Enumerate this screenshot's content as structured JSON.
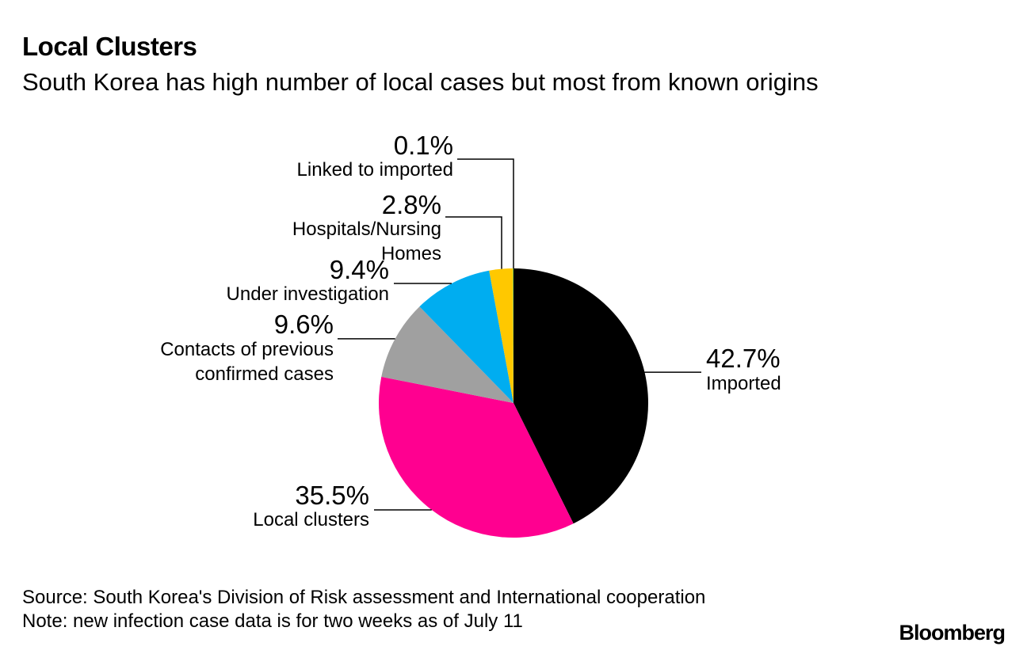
{
  "title": "Local Clusters",
  "subtitle": "South Korea has high number of local cases but most from known origins",
  "chart_data": {
    "type": "pie",
    "slices": [
      {
        "label": "Imported",
        "value": 42.7,
        "value_label": "42.7%",
        "color": "#000000"
      },
      {
        "label": "Local clusters",
        "value": 35.5,
        "value_label": "35.5%",
        "color": "#ff0090"
      },
      {
        "label": "Contacts of previous confirmed cases",
        "label_lines": [
          "Contacts of previous",
          "confirmed cases"
        ],
        "value": 9.6,
        "value_label": "9.6%",
        "color": "#a0a0a0"
      },
      {
        "label": "Under investigation",
        "value": 9.4,
        "value_label": "9.4%",
        "color": "#00adf0"
      },
      {
        "label": "Hospitals/Nursing Homes",
        "label_lines": [
          "Hospitals/Nursing",
          "Homes"
        ],
        "value": 2.8,
        "value_label": "2.8%",
        "color": "#ffc800"
      },
      {
        "label": "Linked to imported",
        "value": 0.1,
        "value_label": "0.1%",
        "color": "#8cc63f"
      }
    ]
  },
  "footer": {
    "source": "Source: South Korea's Division of Risk assessment and International cooperation",
    "note": "Note: new infection case data is for two weeks as of July 11"
  },
  "brand": "Bloomberg"
}
